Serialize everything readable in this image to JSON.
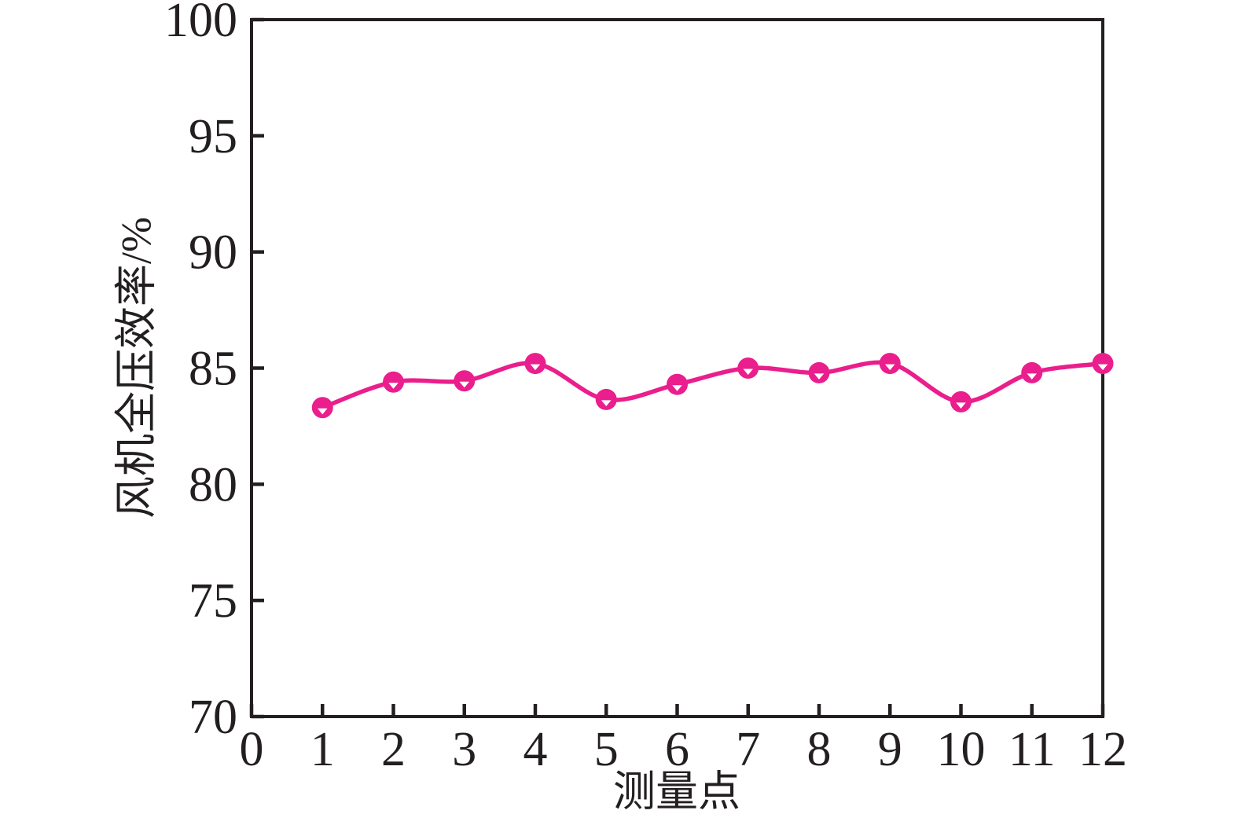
{
  "chart_data": {
    "type": "line",
    "title": "",
    "xlabel": "测量点",
    "ylabel": "风机全压效率/%",
    "x": [
      1,
      2,
      3,
      4,
      5,
      6,
      7,
      8,
      9,
      10,
      11,
      12
    ],
    "series": [
      {
        "name": "风机全压效率",
        "values": [
          83.3,
          84.4,
          84.45,
          85.2,
          83.65,
          84.3,
          85.0,
          84.8,
          85.2,
          83.55,
          84.8,
          85.2
        ]
      }
    ],
    "xlim": [
      0,
      12
    ],
    "ylim": [
      70,
      100
    ],
    "x_ticks": [
      0,
      1,
      2,
      3,
      4,
      5,
      6,
      7,
      8,
      9,
      10,
      11,
      12
    ],
    "y_ticks": [
      70,
      75,
      80,
      85,
      90,
      95,
      100
    ],
    "grid": false,
    "legend": null,
    "line_smooth": true,
    "marker": "circle-with-white-down-triangle",
    "colors": {
      "line": "#EA1E8C",
      "marker_fill": "#EA1E8C",
      "marker_inner": "#FFFFFF",
      "axis": "#231F20",
      "text": "#231F20",
      "background": "#FFFFFF"
    }
  }
}
